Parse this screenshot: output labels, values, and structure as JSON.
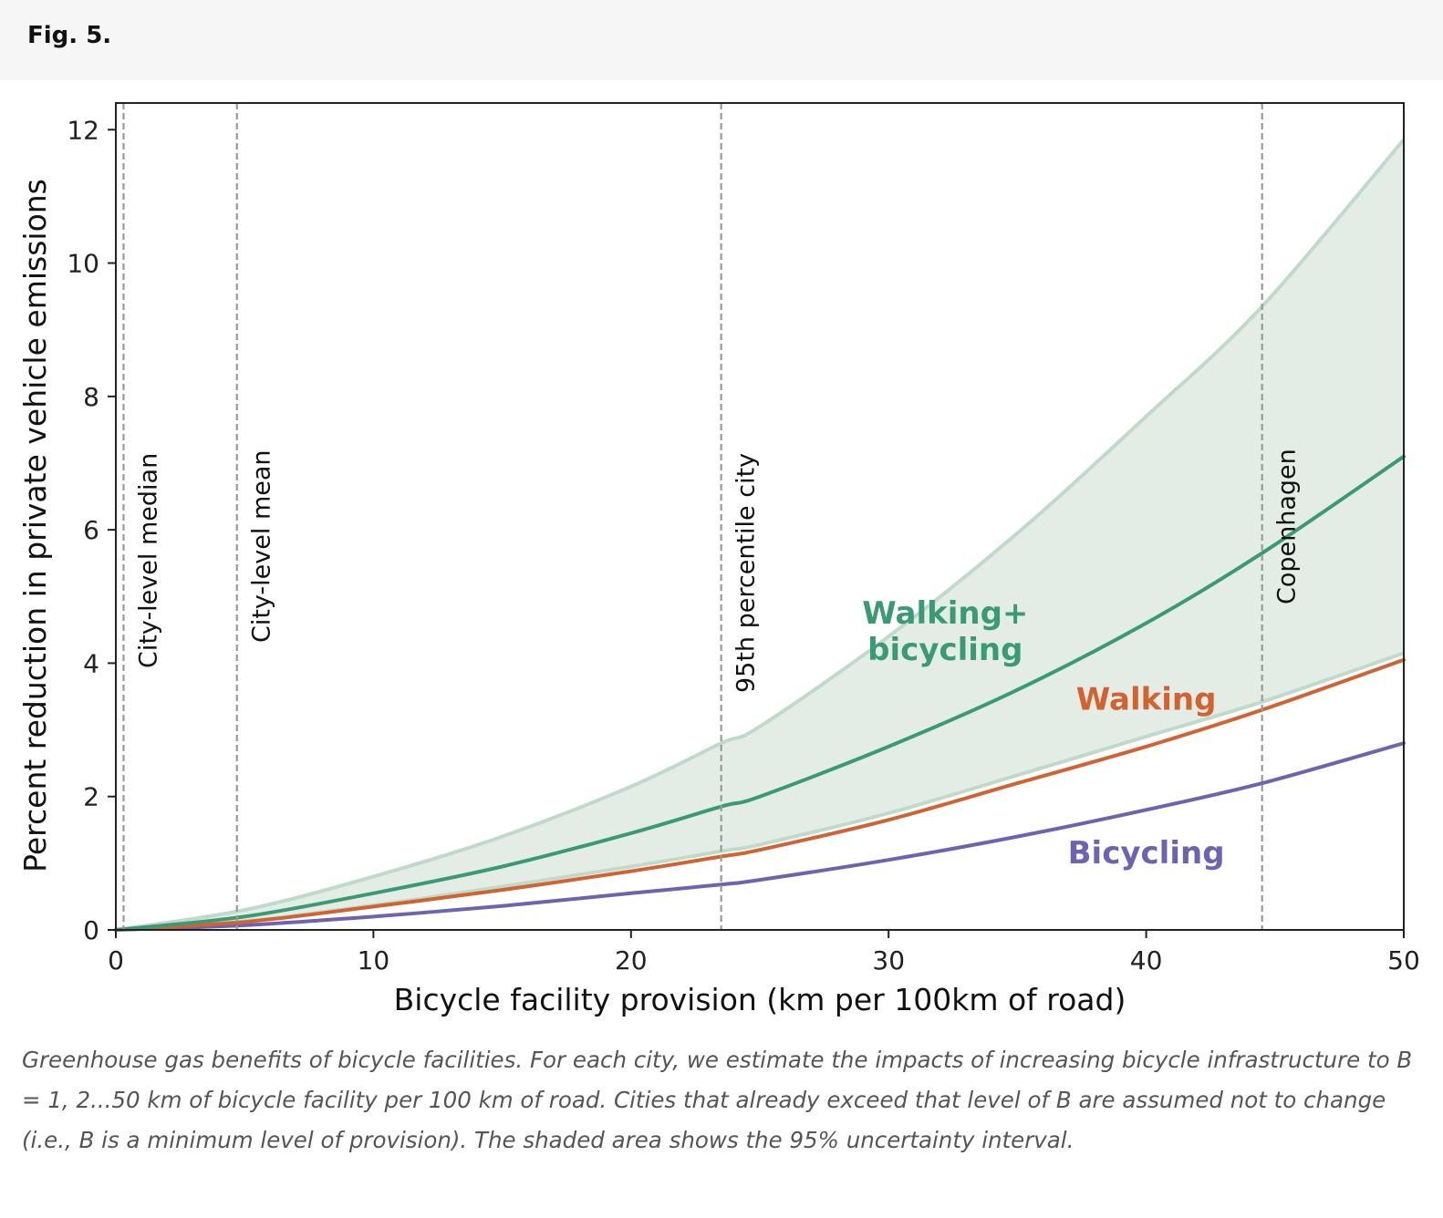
{
  "figure": {
    "label": "Fig. 5.",
    "caption": "Greenhouse gas benefits of bicycle facilities. For each city, we estimate the impacts of increasing bicycle infrastructure to B = 1, 2...50 km of bicycle facility per 100 km of road. Cities that already exceed that level of B are assumed not to change (i.e., B is a minimum level of provision). The shaded area shows the 95% uncertainty interval."
  },
  "colors": {
    "walking_bicycling": "#3b9a76",
    "walking": "#d2622f",
    "bicycling": "#6f63b1",
    "band_fill": "#e4ede5",
    "band_edge": "#bfdacb",
    "reference_line": "#999999"
  },
  "chart_data": {
    "type": "line",
    "title": "",
    "xlabel": "Bicycle facility provision (km per 100km of road)",
    "ylabel": "Percent reduction in private vehicle emissions",
    "xlim": [
      0,
      50
    ],
    "ylim": [
      0,
      12.4
    ],
    "xticks": [
      0,
      10,
      20,
      30,
      40,
      50
    ],
    "yticks": [
      0,
      2,
      4,
      6,
      8,
      10,
      12
    ],
    "grid": false,
    "legend": "none (series labeled inline)",
    "x": [
      0,
      5,
      10,
      15,
      20,
      23.5,
      25,
      30,
      35,
      40,
      44.5,
      50
    ],
    "series": [
      {
        "name": "Walking+\nbicycling",
        "color_key": "walking_bicycling",
        "values": [
          0,
          0.2,
          0.55,
          0.95,
          1.45,
          1.85,
          2.0,
          2.75,
          3.6,
          4.6,
          5.65,
          7.1
        ]
      },
      {
        "name": "Walking",
        "color_key": "walking",
        "values": [
          0,
          0.12,
          0.35,
          0.6,
          0.88,
          1.1,
          1.2,
          1.65,
          2.2,
          2.75,
          3.3,
          4.05
        ]
      },
      {
        "name": "Bicycling",
        "color_key": "bicycling",
        "values": [
          0,
          0.07,
          0.2,
          0.36,
          0.55,
          0.68,
          0.75,
          1.05,
          1.4,
          1.8,
          2.2,
          2.8
        ]
      }
    ],
    "uncertainty_band": {
      "series": "Walking+\nbicycling",
      "lower": [
        0,
        0.13,
        0.37,
        0.65,
        0.95,
        1.18,
        1.28,
        1.75,
        2.32,
        2.9,
        3.42,
        4.15
      ],
      "upper": [
        0,
        0.3,
        0.8,
        1.4,
        2.15,
        2.8,
        3.05,
        4.4,
        5.95,
        7.7,
        9.35,
        11.85
      ]
    },
    "reference_lines": [
      {
        "x": 0.3,
        "label": "City-level median"
      },
      {
        "x": 4.7,
        "label": "City-level mean"
      },
      {
        "x": 23.5,
        "label": "95th percentile city"
      },
      {
        "x": 44.5,
        "label": "Copenhagen"
      }
    ],
    "annotations": [
      {
        "text": "Walking+\nbicycling",
        "series": "Walking+\nbicycling",
        "x": 32.2,
        "y": 4.05
      },
      {
        "text": "Walking",
        "series": "Walking",
        "x": 40.0,
        "y": 3.3
      },
      {
        "text": "Bicycling",
        "series": "Bicycling",
        "x": 40.0,
        "y": 1.0
      }
    ]
  }
}
